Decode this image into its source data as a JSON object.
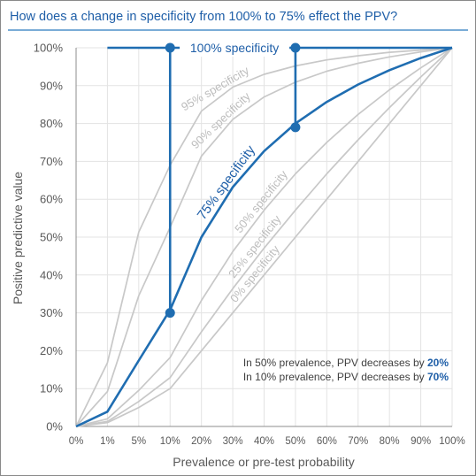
{
  "chart_data": {
    "type": "line",
    "title": "How does a change in specificity from 100% to 75%  effect the PPV?",
    "xlabel": "Prevalence or pre-test probability",
    "ylabel": "Positive predictive value",
    "x_ticks": [
      "0%",
      "1%",
      "5%",
      "10%",
      "20%",
      "30%",
      "40%",
      "50%",
      "60%",
      "70%",
      "80%",
      "90%",
      "100%"
    ],
    "x_tick_values": [
      0,
      1,
      5,
      10,
      20,
      30,
      40,
      50,
      60,
      70,
      80,
      90,
      100
    ],
    "y_ticks": [
      "0%",
      "10%",
      "20%",
      "30%",
      "40%",
      "50%",
      "60%",
      "70%",
      "80%",
      "90%",
      "100%"
    ],
    "ylim": [
      0,
      100
    ],
    "grid": true,
    "series": [
      {
        "name": "0% specificity",
        "emphasis": "grey",
        "x": [
          0,
          1,
          5,
          10,
          20,
          30,
          40,
          50,
          60,
          70,
          80,
          90,
          100
        ],
        "y": [
          0,
          1,
          5,
          10,
          20,
          30,
          40,
          50,
          60,
          70,
          80,
          90,
          100
        ]
      },
      {
        "name": "25% specificity",
        "emphasis": "grey",
        "x": [
          0,
          1,
          5,
          10,
          20,
          30,
          40,
          50,
          60,
          70,
          80,
          90,
          100
        ],
        "y": [
          0,
          1.3,
          6.6,
          12.9,
          25,
          36.4,
          47.1,
          57.1,
          66.7,
          75.7,
          84.2,
          92.3,
          100
        ]
      },
      {
        "name": "50% specificity",
        "emphasis": "grey",
        "x": [
          0,
          1,
          5,
          10,
          20,
          30,
          40,
          50,
          60,
          70,
          80,
          90,
          100
        ],
        "y": [
          0,
          2,
          9.5,
          18.2,
          33.3,
          46.2,
          57.1,
          66.7,
          75,
          82.4,
          88.9,
          94.7,
          100
        ]
      },
      {
        "name": "75% specificity",
        "emphasis": "blue",
        "x": [
          0,
          1,
          5,
          10,
          20,
          30,
          40,
          50,
          60,
          70,
          80,
          90,
          100
        ],
        "y": [
          0,
          3.9,
          17.4,
          30.8,
          50,
          63.2,
          72.7,
          80,
          85.7,
          90.3,
          94.1,
          97.3,
          100
        ]
      },
      {
        "name": "90% specificity",
        "emphasis": "grey",
        "x": [
          0,
          1,
          5,
          10,
          20,
          30,
          40,
          50,
          60,
          70,
          80,
          90,
          100
        ],
        "y": [
          0,
          9.2,
          34.5,
          52.6,
          71.4,
          81.1,
          87,
          90.9,
          93.8,
          95.9,
          97.6,
          98.9,
          100
        ]
      },
      {
        "name": "95% specificity",
        "emphasis": "grey",
        "x": [
          0,
          1,
          5,
          10,
          20,
          30,
          40,
          50,
          60,
          70,
          80,
          90,
          100
        ],
        "y": [
          0,
          16.8,
          51.3,
          69,
          83.3,
          89.6,
          93,
          95.2,
          96.8,
          97.9,
          98.8,
          99.4,
          100
        ]
      },
      {
        "name": "100% specificity",
        "emphasis": "blue",
        "x": [
          1,
          100
        ],
        "y": [
          100,
          100
        ]
      }
    ],
    "highlight_points": [
      {
        "x": 10,
        "y": 100
      },
      {
        "x": 10,
        "y": 30
      },
      {
        "x": 50,
        "y": 100
      },
      {
        "x": 50,
        "y": 79
      }
    ],
    "drop_lines": [
      {
        "x": 10,
        "from": 100,
        "to": 30
      },
      {
        "x": 50,
        "from": 100,
        "to": 79
      }
    ],
    "annotations": [
      {
        "prefix": "In 50% prevalence, PPV decreases by ",
        "value": "20%"
      },
      {
        "prefix": "In 10%  prevalence, PPV decreases by ",
        "value": "70%"
      }
    ],
    "colors": {
      "title": "#1f5fa8",
      "blue": "#1f6db1",
      "grey": "#c8c8c8",
      "grid": "#e3e3e3",
      "axis": "#8c8c8c",
      "label_blue": "#1f5fa8"
    }
  }
}
